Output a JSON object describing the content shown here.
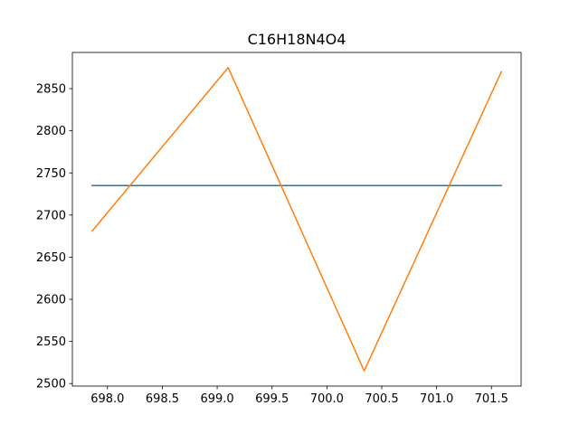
{
  "chart_data": {
    "type": "line",
    "title": "C16H18N4O4",
    "xlabel": "",
    "ylabel": "",
    "xlim": [
      697.68,
      701.77
    ],
    "ylim": [
      2497,
      2893
    ],
    "x_ticks": [
      698.0,
      698.5,
      699.0,
      699.5,
      700.0,
      700.5,
      701.0,
      701.5
    ],
    "x_tick_labels": [
      "698.0",
      "698.5",
      "699.0",
      "699.5",
      "700.0",
      "700.5",
      "701.0",
      "701.5"
    ],
    "y_ticks": [
      2500,
      2550,
      2600,
      2650,
      2700,
      2750,
      2800,
      2850
    ],
    "y_tick_labels": [
      "2500",
      "2550",
      "2600",
      "2650",
      "2700",
      "2750",
      "2800",
      "2850"
    ],
    "grid": false,
    "legend": "none",
    "series": [
      {
        "color": "#1f77b4",
        "points": [
          [
            697.86,
            2735
          ],
          [
            701.59,
            2735
          ]
        ]
      },
      {
        "color": "#ff7f0e",
        "points": [
          [
            697.86,
            2681
          ],
          [
            699.1,
            2875
          ],
          [
            700.34,
            2515
          ],
          [
            701.59,
            2870
          ]
        ]
      }
    ]
  }
}
